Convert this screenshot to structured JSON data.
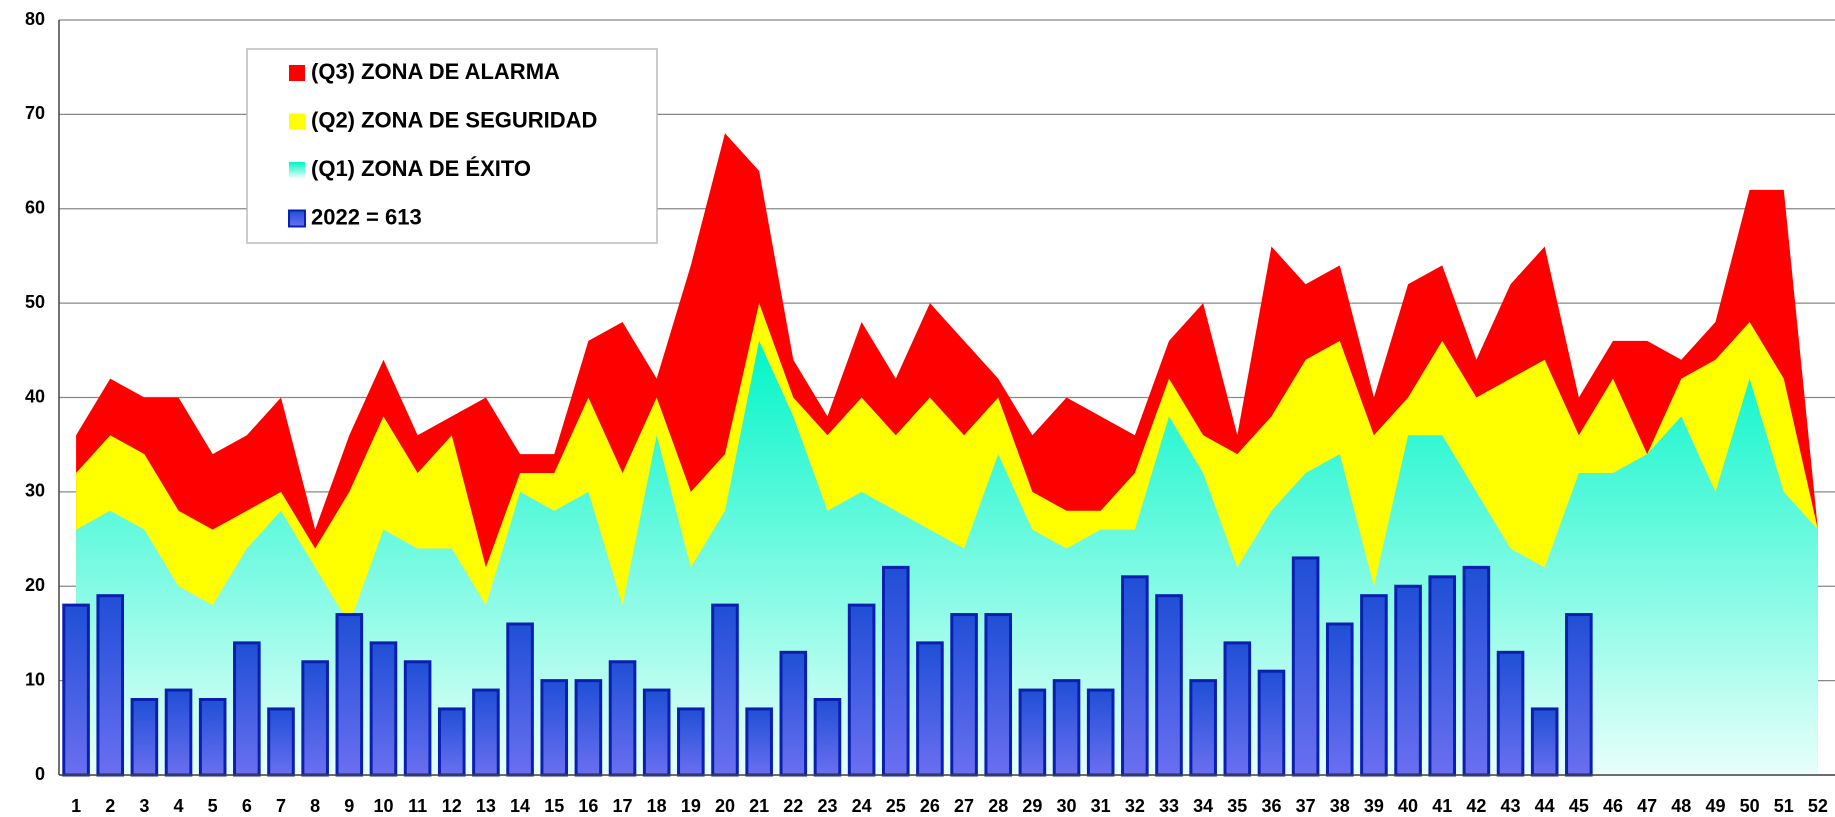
{
  "chart_data": {
    "type": "combo",
    "categories": [
      "1",
      "2",
      "3",
      "4",
      "5",
      "6",
      "7",
      "8",
      "9",
      "10",
      "11",
      "12",
      "13",
      "14",
      "15",
      "16",
      "17",
      "18",
      "19",
      "20",
      "21",
      "22",
      "23",
      "24",
      "25",
      "26",
      "27",
      "28",
      "29",
      "30",
      "31",
      "32",
      "33",
      "34",
      "35",
      "36",
      "37",
      "38",
      "39",
      "40",
      "41",
      "42",
      "43",
      "44",
      "45",
      "46",
      "47",
      "48",
      "49",
      "50",
      "51",
      "52"
    ],
    "series": [
      {
        "name": "(Q3) ZONA DE ALARMA",
        "type": "area",
        "color": "#ff0000",
        "values": [
          36,
          42,
          40,
          40,
          34,
          36,
          40,
          26,
          36,
          44,
          36,
          38,
          40,
          34,
          34,
          46,
          48,
          42,
          54,
          68,
          64,
          44,
          38,
          48,
          42,
          50,
          46,
          42,
          36,
          40,
          38,
          36,
          46,
          50,
          36,
          56,
          52,
          54,
          40,
          52,
          54,
          44,
          52,
          56,
          40,
          46,
          46,
          44,
          48,
          62,
          62,
          26
        ]
      },
      {
        "name": "(Q2) ZONA DE SEGURIDAD",
        "type": "area",
        "color": "#ffff00",
        "values": [
          32,
          36,
          34,
          28,
          26,
          28,
          30,
          24,
          30,
          38,
          32,
          36,
          22,
          32,
          32,
          40,
          32,
          40,
          30,
          34,
          50,
          40,
          36,
          40,
          36,
          40,
          36,
          40,
          30,
          28,
          28,
          32,
          42,
          36,
          34,
          38,
          44,
          46,
          36,
          40,
          46,
          40,
          42,
          44,
          36,
          42,
          34,
          42,
          44,
          48,
          42,
          26
        ]
      },
      {
        "name": "(Q1) ZONA DE ÉXITO",
        "type": "area",
        "color": "#00f5c8",
        "values": [
          26,
          28,
          26,
          20,
          18,
          24,
          28,
          22,
          16,
          26,
          24,
          24,
          18,
          30,
          28,
          30,
          18,
          36,
          22,
          28,
          46,
          38,
          28,
          30,
          28,
          26,
          24,
          34,
          26,
          24,
          26,
          26,
          38,
          32,
          22,
          28,
          32,
          34,
          20,
          36,
          36,
          30,
          24,
          22,
          32,
          32,
          34,
          38,
          30,
          42,
          30,
          26
        ]
      },
      {
        "name": "2022 = 613",
        "type": "bar",
        "color": "#3a5be0",
        "values": [
          18,
          19,
          8,
          9,
          8,
          14,
          7,
          12,
          17,
          14,
          12,
          7,
          9,
          16,
          10,
          10,
          12,
          9,
          7,
          18,
          7,
          13,
          8,
          18,
          22,
          14,
          17,
          17,
          9,
          10,
          9,
          21,
          19,
          10,
          14,
          11,
          23,
          16,
          19,
          20,
          21,
          22,
          13,
          7,
          17,
          null,
          null,
          null,
          null,
          null,
          null,
          null
        ]
      }
    ],
    "ylim": [
      0,
      80
    ],
    "yticks": [
      0,
      10,
      20,
      30,
      40,
      50,
      60,
      70,
      80
    ],
    "grid": true,
    "legend": "top-left"
  }
}
